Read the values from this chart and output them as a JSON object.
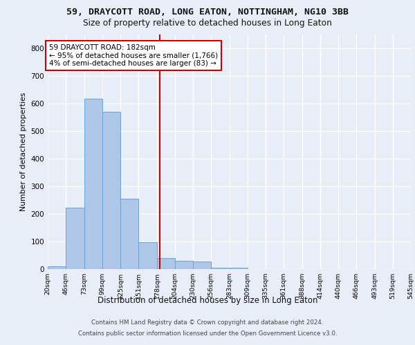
{
  "title1": "59, DRAYCOTT ROAD, LONG EATON, NOTTINGHAM, NG10 3BB",
  "title2": "Size of property relative to detached houses in Long Eaton",
  "xlabel": "Distribution of detached houses by size in Long Eaton",
  "ylabel": "Number of detached properties",
  "footer1": "Contains HM Land Registry data © Crown copyright and database right 2024.",
  "footer2": "Contains public sector information licensed under the Open Government Licence v3.0.",
  "annotation_line1": "59 DRAYCOTT ROAD: 182sqm",
  "annotation_line2": "← 95% of detached houses are smaller (1,766)",
  "annotation_line3": "4% of semi-detached houses are larger (83) →",
  "property_sqm": 182,
  "bin_edges": [
    20,
    46,
    73,
    99,
    125,
    151,
    178,
    204,
    230,
    256,
    283,
    309,
    335,
    361,
    388,
    414,
    440,
    466,
    493,
    519,
    545
  ],
  "bar_heights": [
    10,
    222,
    617,
    570,
    255,
    98,
    40,
    30,
    27,
    5,
    5,
    0,
    0,
    0,
    0,
    0,
    0,
    0,
    0,
    0
  ],
  "bar_color": "#aec6e8",
  "bar_edge_color": "#6ba3d0",
  "vline_color": "#cc0000",
  "bg_color": "#e8eef7",
  "grid_color": "#ffffff",
  "ylim": [
    0,
    850
  ],
  "yticks": [
    0,
    100,
    200,
    300,
    400,
    500,
    600,
    700,
    800
  ]
}
